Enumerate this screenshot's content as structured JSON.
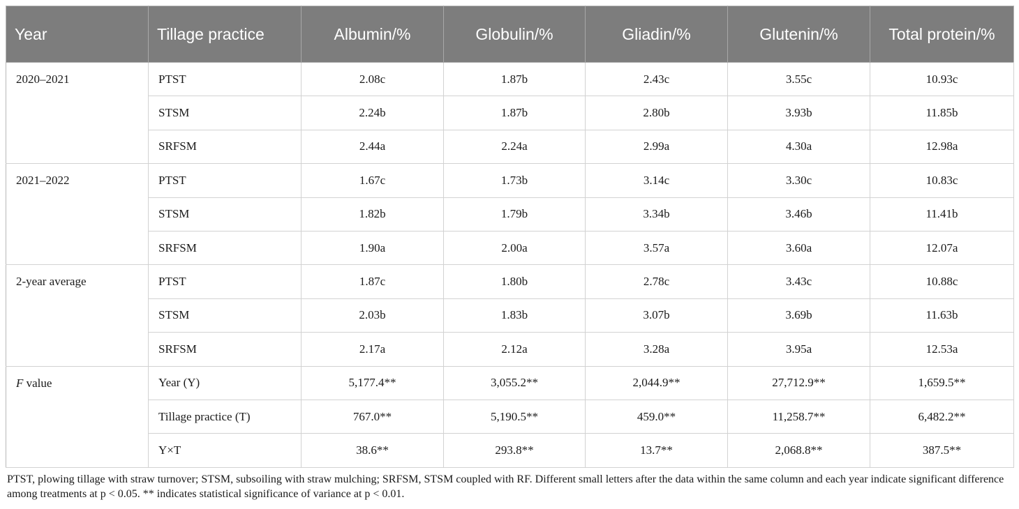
{
  "table": {
    "headers": [
      "Year",
      "Tillage practice",
      "Albumin/%",
      "Globulin/%",
      "Gliadin/%",
      "Glutenin/%",
      "Total protein/%"
    ],
    "groups": [
      {
        "label": "2020–2021",
        "rows": [
          {
            "practice": "PTST",
            "values": [
              "2.08c",
              "1.87b",
              "2.43c",
              "3.55c",
              "10.93c"
            ]
          },
          {
            "practice": "STSM",
            "values": [
              "2.24b",
              "1.87b",
              "2.80b",
              "3.93b",
              "11.85b"
            ]
          },
          {
            "practice": "SRFSM",
            "values": [
              "2.44a",
              "2.24a",
              "2.99a",
              "4.30a",
              "12.98a"
            ]
          }
        ]
      },
      {
        "label": "2021–2022",
        "rows": [
          {
            "practice": "PTST",
            "values": [
              "1.67c",
              "1.73b",
              "3.14c",
              "3.30c",
              "10.83c"
            ]
          },
          {
            "practice": "STSM",
            "values": [
              "1.82b",
              "1.79b",
              "3.34b",
              "3.46b",
              "11.41b"
            ]
          },
          {
            "practice": "SRFSM",
            "values": [
              "1.90a",
              "2.00a",
              "3.57a",
              "3.60a",
              "12.07a"
            ]
          }
        ]
      },
      {
        "label": "2-year average",
        "rows": [
          {
            "practice": "PTST",
            "values": [
              "1.87c",
              "1.80b",
              "2.78c",
              "3.43c",
              "10.88c"
            ]
          },
          {
            "practice": "STSM",
            "values": [
              "2.03b",
              "1.83b",
              "3.07b",
              "3.69b",
              "11.63b"
            ]
          },
          {
            "practice": "SRFSM",
            "values": [
              "2.17a",
              "2.12a",
              "3.28a",
              "3.95a",
              "12.53a"
            ]
          }
        ]
      },
      {
        "label_italic": "F",
        "label_rest": " value",
        "rows": [
          {
            "practice": "Year (Y)",
            "values": [
              "5,177.4**",
              "3,055.2**",
              "2,044.9**",
              "27,712.9**",
              "1,659.5**"
            ]
          },
          {
            "practice": "Tillage practice (T)",
            "values": [
              "767.0**",
              "5,190.5**",
              "459.0**",
              "11,258.7**",
              "6,482.2**"
            ]
          },
          {
            "practice": "Y×T",
            "values": [
              "38.6**",
              "293.8**",
              "13.7**",
              "2,068.8**",
              "387.5**"
            ]
          }
        ]
      }
    ]
  },
  "footnote": "PTST, plowing tillage with straw turnover; STSM, subsoiling with straw mulching; SRFSM, STSM coupled with RF. Different small letters after the data within the same column and each year indicate significant difference among treatments at p < 0.05. ** indicates statistical significance of variance at p < 0.01."
}
